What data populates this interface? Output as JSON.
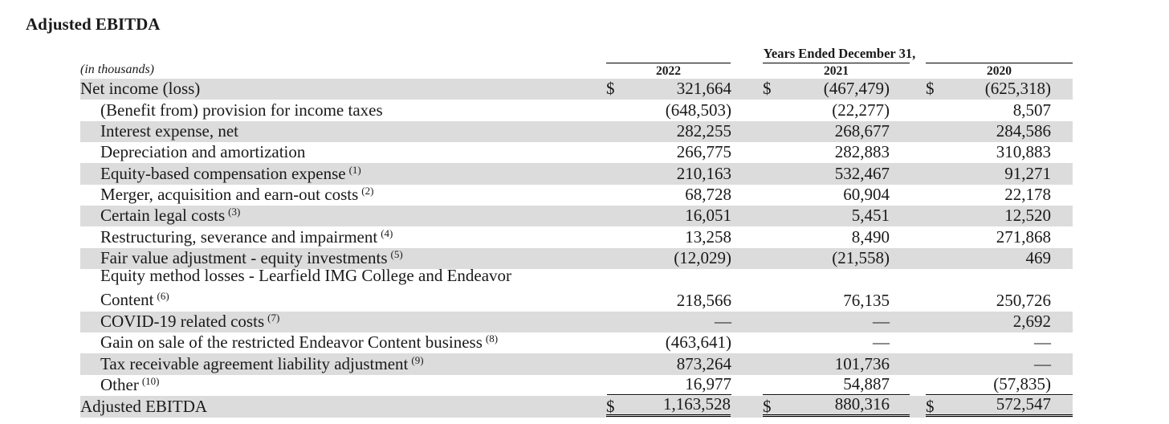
{
  "title": "Adjusted EBITDA",
  "table": {
    "period_header": "Years Ended December 31,",
    "years": [
      "2022",
      "2021",
      "2020"
    ],
    "units": "(in thousands)",
    "currency_symbol": "$",
    "rows": [
      {
        "label": "Net income (loss)",
        "note": "",
        "values": [
          "321,664",
          "(467,479)",
          "(625,318)"
        ]
      },
      {
        "label": "(Benefit from) provision for income taxes",
        "note": "",
        "values": [
          "(648,503)",
          "(22,277)",
          "8,507"
        ]
      },
      {
        "label": "Interest expense, net",
        "note": "",
        "values": [
          "282,255",
          "268,677",
          "284,586"
        ]
      },
      {
        "label": "Depreciation and amortization",
        "note": "",
        "values": [
          "266,775",
          "282,883",
          "310,883"
        ]
      },
      {
        "label": "Equity-based compensation expense",
        "note": "(1)",
        "values": [
          "210,163",
          "532,467",
          "91,271"
        ]
      },
      {
        "label": "Merger, acquisition and earn-out costs",
        "note": "(2)",
        "values": [
          "68,728",
          "60,904",
          "22,178"
        ]
      },
      {
        "label": "Certain legal costs",
        "note": "(3)",
        "values": [
          "16,051",
          "5,451",
          "12,520"
        ]
      },
      {
        "label": "Restructuring, severance and impairment",
        "note": "(4)",
        "values": [
          "13,258",
          "8,490",
          "271,868"
        ]
      },
      {
        "label": "Fair value adjustment - equity investments",
        "note": "(5)",
        "values": [
          "(12,029)",
          "(21,558)",
          "469"
        ]
      },
      {
        "label_line1": "Equity method losses - Learfield IMG College and Endeavor",
        "label": "Content",
        "note": "(6)",
        "values": [
          "218,566",
          "76,135",
          "250,726"
        ]
      },
      {
        "label": "COVID-19 related costs",
        "note": "(7)",
        "values": [
          "—",
          "—",
          "2,692"
        ]
      },
      {
        "label": "Gain on sale of the restricted Endeavor Content business",
        "note": "(8)",
        "values": [
          "(463,641)",
          "—",
          "—"
        ]
      },
      {
        "label": "Tax receivable agreement liability adjustment",
        "note": "(9)",
        "values": [
          "873,264",
          "101,736",
          "—"
        ]
      },
      {
        "label": "Other",
        "note": "(10)",
        "values": [
          "16,977",
          "54,887",
          "(57,835)"
        ]
      },
      {
        "label": "Adjusted EBITDA",
        "note": "",
        "values": [
          "1,163,528",
          "880,316",
          "572,547"
        ]
      }
    ]
  }
}
